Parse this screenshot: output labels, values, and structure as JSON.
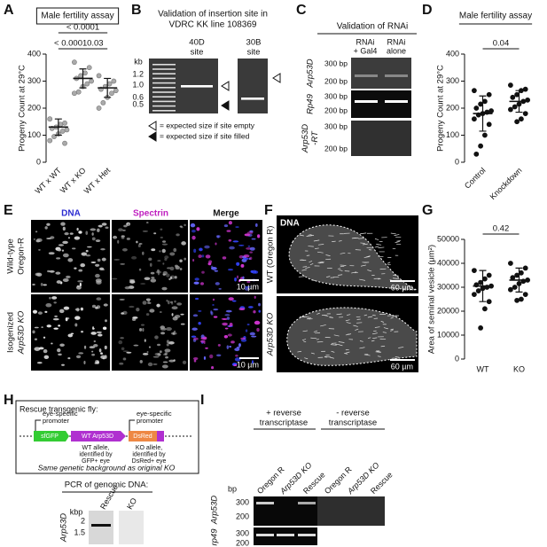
{
  "chart_data": [
    {
      "type": "strip",
      "title": "Male fertility assay",
      "y_label": "Progeny Count at 29°C",
      "categories": [
        "WT x WT",
        "WT x KO",
        "WT x Het"
      ],
      "values": [
        [
          160,
          145,
          140,
          130,
          125,
          120,
          115,
          105,
          95,
          80,
          70
        ],
        [
          370,
          350,
          330,
          320,
          310,
          300,
          290,
          280,
          260,
          255
        ],
        [
          320,
          300,
          290,
          280,
          270,
          265,
          255,
          240,
          220,
          200
        ]
      ],
      "mean": [
        130,
        310,
        275
      ],
      "sd": [
        30,
        35,
        35
      ],
      "color": "#aaaaaa",
      "ylim": [
        0,
        400
      ],
      "yticks": [
        0,
        100,
        200,
        300,
        400
      ],
      "comparisons": [
        {
          "label": "< 0.0001",
          "between": [
            "WT x WT",
            "WT x KO"
          ]
        },
        {
          "label": "0.03",
          "between": [
            "WT x KO",
            "WT x Het"
          ]
        },
        {
          "label": "< 0.0001",
          "between": [
            "WT x WT",
            "WT x Het"
          ]
        }
      ]
    },
    {
      "type": "strip",
      "title": "Male fertility assay",
      "y_label": "Progeny Count at 29°C",
      "categories": [
        "Control",
        "Knockdown"
      ],
      "values": [
        [
          265,
          250,
          225,
          215,
          200,
          190,
          185,
          180,
          175,
          160,
          140,
          100,
          60,
          30
        ],
        [
          285,
          270,
          265,
          250,
          240,
          230,
          225,
          215,
          205,
          195,
          180,
          160,
          150
        ]
      ],
      "mean": [
        180,
        225
      ],
      "sd": [
        65,
        40
      ],
      "color": "#111111",
      "ylim": [
        0,
        400
      ],
      "yticks": [
        0,
        100,
        200,
        300,
        400
      ],
      "comparisons": [
        {
          "label": "0.04",
          "between": [
            "Control",
            "Knockdown"
          ]
        }
      ]
    },
    {
      "type": "strip",
      "y_label": "Area of seminal vesicle (μm²)",
      "categories": [
        "WT",
        "KO"
      ],
      "values": [
        [
          37000,
          35000,
          33500,
          32000,
          31000,
          30500,
          30000,
          29500,
          28500,
          27000,
          24000,
          21000,
          13000
        ],
        [
          40000,
          38000,
          36000,
          35000,
          34000,
          33000,
          32500,
          31500,
          30000,
          29000,
          27000,
          25000,
          24500
        ]
      ],
      "mean": [
        30500,
        33000
      ],
      "sd": [
        6500,
        5000
      ],
      "color": "#111111",
      "ylim": [
        0,
        50000
      ],
      "yticks": [
        0,
        10000,
        20000,
        30000,
        40000,
        50000
      ],
      "comparisons": [
        {
          "label": "0.42",
          "between": [
            "WT",
            "KO"
          ]
        }
      ]
    }
  ],
  "letters": [
    "A",
    "B",
    "C",
    "D",
    "E",
    "F",
    "G",
    "H",
    "I"
  ],
  "B": {
    "title": [
      "Validation of insertion site in",
      "VDRC KK line 108369"
    ],
    "unit": "kb",
    "ladder": [
      "1.2",
      "1.0",
      "0.6",
      "0.5"
    ],
    "lanes": [
      [
        "40D",
        "site"
      ],
      [
        "30B",
        "site"
      ]
    ],
    "legend": [
      "= expected size if site empty",
      "= expected size if site filled"
    ]
  },
  "C": {
    "title": "Validation of RNAi",
    "lanes": [
      [
        "RNAi",
        "+ Gal4"
      ],
      [
        "RNAi",
        "alone"
      ]
    ],
    "rows": [
      {
        "gene": [
          "Arp53D"
        ],
        "markers": [
          "300 bp",
          "200 bp"
        ]
      },
      {
        "gene": [
          "Rp49"
        ],
        "markers": [
          "300 bp",
          "200 bp"
        ]
      },
      {
        "gene": [
          "Arp53D",
          "-RT"
        ],
        "markers": [
          "300 bp",
          "200 bp"
        ]
      }
    ]
  },
  "E": {
    "stains": [
      "DNA",
      "Spectrin",
      "Merge"
    ],
    "rows": [
      [
        "Wild-type",
        "Oregon-R"
      ],
      [
        "Isogenized",
        "Arp53D KO"
      ]
    ],
    "scale": [
      "10 µm",
      "10 µm"
    ]
  },
  "F": {
    "stain": "DNA",
    "rows": [
      "WT (Oregon R)",
      "Arp53D KO"
    ],
    "scale": [
      "60 µm",
      "60 µm"
    ]
  },
  "H": {
    "box_title": "Rescue transgenic fly:",
    "promoters": [
      [
        "eye-specific",
        "promoter"
      ],
      [
        "eye-specific",
        "promoter"
      ]
    ],
    "elements": [
      "sfGFP",
      "WT Arp53D",
      "DsRed"
    ],
    "notes": [
      [
        "WT allele,",
        "identified by",
        "GFP+ eye"
      ],
      [
        "KO allele,",
        "identified by",
        "DsRed+ eye"
      ]
    ],
    "footer": "Same genetic background as original KO",
    "pcr_title": "PCR of genomic DNA:",
    "unit": "kbp",
    "markers": [
      "2",
      "1.5"
    ],
    "lanes": [
      "Rescue",
      "KO"
    ],
    "gene": "Arp53D"
  },
  "I": {
    "groups": [
      [
        "+ reverse",
        "transcriptase"
      ],
      [
        "- reverse",
        "transcriptase"
      ]
    ],
    "lanes": [
      "Oregon R",
      "Arp53D KO",
      "Rescue",
      "Oregon R",
      "Arp53D KO",
      "Rescue"
    ],
    "unit": "bp",
    "rows": [
      {
        "gene": "Arp53D",
        "markers": [
          "300",
          "200"
        ]
      },
      {
        "gene": "rp49",
        "markers": [
          "300",
          "200"
        ]
      }
    ]
  }
}
